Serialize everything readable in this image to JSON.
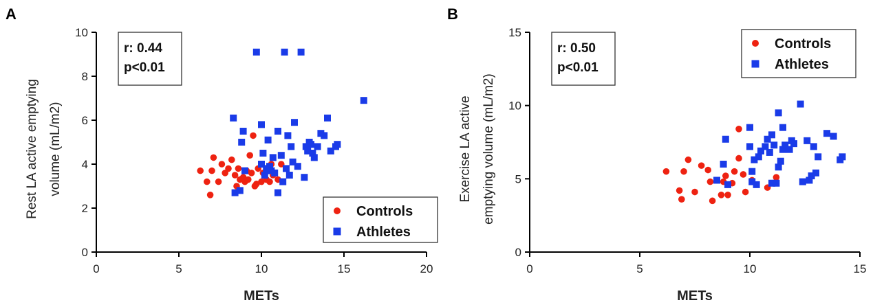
{
  "chart_data": [
    {
      "type": "scatter",
      "panel": "A",
      "ylabel_lines": [
        "Rest LA active emptying",
        "volume (mL/m2)"
      ],
      "xlabel": "METs",
      "xlim": [
        0,
        20
      ],
      "ylim": [
        0,
        10
      ],
      "xticks": [
        "0",
        "5",
        "10",
        "15",
        "20"
      ],
      "yticks": [
        "0",
        "2",
        "4",
        "6",
        "8",
        "10"
      ],
      "stats": [
        "r: 0.44",
        "p<0.01"
      ],
      "legend_position": "bottom-right",
      "series": [
        {
          "name": "Controls",
          "marker": "circle",
          "color": "#ee2211",
          "points": [
            [
              6.3,
              3.7
            ],
            [
              6.7,
              3.2
            ],
            [
              6.9,
              2.6
            ],
            [
              7.0,
              3.7
            ],
            [
              7.1,
              4.3
            ],
            [
              7.4,
              3.2
            ],
            [
              7.6,
              4.0
            ],
            [
              7.8,
              3.6
            ],
            [
              8.0,
              3.8
            ],
            [
              8.2,
              4.2
            ],
            [
              8.4,
              3.5
            ],
            [
              8.5,
              3.0
            ],
            [
              8.6,
              3.8
            ],
            [
              8.7,
              3.3
            ],
            [
              8.9,
              3.4
            ],
            [
              9.0,
              3.2
            ],
            [
              9.1,
              3.7
            ],
            [
              9.2,
              3.3
            ],
            [
              9.3,
              4.4
            ],
            [
              9.4,
              3.6
            ],
            [
              9.5,
              5.3
            ],
            [
              9.6,
              3.0
            ],
            [
              9.7,
              3.1
            ],
            [
              9.8,
              3.8
            ],
            [
              10.0,
              3.2
            ],
            [
              10.1,
              3.6
            ],
            [
              10.3,
              3.3
            ],
            [
              10.5,
              3.2
            ],
            [
              10.6,
              4.0
            ],
            [
              11.0,
              3.3
            ],
            [
              11.2,
              4.0
            ],
            [
              10.7,
              3.5
            ]
          ]
        },
        {
          "name": "Athletes",
          "marker": "square",
          "color": "#1a3be8",
          "points": [
            [
              8.3,
              6.1
            ],
            [
              8.4,
              2.7
            ],
            [
              8.7,
              2.8
            ],
            [
              8.8,
              5.0
            ],
            [
              8.9,
              5.5
            ],
            [
              9.0,
              3.7
            ],
            [
              9.7,
              9.1
            ],
            [
              10.0,
              5.8
            ],
            [
              10.0,
              4.0
            ],
            [
              10.1,
              4.5
            ],
            [
              10.2,
              3.5
            ],
            [
              10.3,
              3.8
            ],
            [
              10.4,
              5.1
            ],
            [
              10.5,
              3.9
            ],
            [
              10.6,
              3.7
            ],
            [
              10.7,
              4.3
            ],
            [
              10.8,
              3.6
            ],
            [
              11.0,
              5.5
            ],
            [
              11.0,
              2.7
            ],
            [
              11.2,
              4.4
            ],
            [
              11.3,
              3.2
            ],
            [
              11.4,
              9.1
            ],
            [
              11.5,
              3.8
            ],
            [
              11.6,
              5.3
            ],
            [
              11.7,
              3.5
            ],
            [
              11.8,
              4.8
            ],
            [
              12.0,
              5.9
            ],
            [
              12.2,
              3.9
            ],
            [
              12.4,
              9.1
            ],
            [
              12.6,
              3.4
            ],
            [
              12.7,
              4.8
            ],
            [
              12.8,
              4.6
            ],
            [
              13.0,
              4.9
            ],
            [
              13.1,
              4.5
            ],
            [
              13.2,
              4.3
            ],
            [
              13.4,
              4.8
            ],
            [
              13.6,
              5.4
            ],
            [
              13.8,
              5.3
            ],
            [
              14.0,
              6.1
            ],
            [
              14.2,
              4.6
            ],
            [
              14.5,
              4.8
            ],
            [
              14.6,
              4.9
            ],
            [
              16.2,
              6.9
            ],
            [
              11.9,
              4.1
            ],
            [
              12.9,
              5.0
            ]
          ]
        }
      ]
    },
    {
      "type": "scatter",
      "panel": "B",
      "ylabel_lines": [
        "Exercise LA active",
        "emptying volume (mL/m2)"
      ],
      "xlabel": "METs",
      "xlim": [
        0,
        15
      ],
      "ylim": [
        0,
        15
      ],
      "xticks": [
        "0",
        "5",
        "10",
        "15"
      ],
      "yticks": [
        "0",
        "5",
        "10",
        "15"
      ],
      "stats": [
        "r: 0.50",
        "p<0.01"
      ],
      "legend_position": "top-right",
      "series": [
        {
          "name": "Controls",
          "marker": "circle",
          "color": "#ee2211",
          "points": [
            [
              6.2,
              5.5
            ],
            [
              6.8,
              4.2
            ],
            [
              6.9,
              3.6
            ],
            [
              7.0,
              5.5
            ],
            [
              7.2,
              6.3
            ],
            [
              7.5,
              4.1
            ],
            [
              7.8,
              5.9
            ],
            [
              8.1,
              5.6
            ],
            [
              8.2,
              4.8
            ],
            [
              8.3,
              3.5
            ],
            [
              8.5,
              4.9
            ],
            [
              8.7,
              3.9
            ],
            [
              8.8,
              4.8
            ],
            [
              8.9,
              5.2
            ],
            [
              9.0,
              3.9
            ],
            [
              9.2,
              4.7
            ],
            [
              9.3,
              5.5
            ],
            [
              9.5,
              6.4
            ],
            [
              9.5,
              8.4
            ],
            [
              9.7,
              5.3
            ],
            [
              9.8,
              4.1
            ],
            [
              10.1,
              4.9
            ],
            [
              10.8,
              4.4
            ],
            [
              11.2,
              5.1
            ]
          ]
        },
        {
          "name": "Athletes",
          "marker": "square",
          "color": "#1a3be8",
          "points": [
            [
              8.5,
              4.9
            ],
            [
              8.8,
              6.0
            ],
            [
              8.9,
              7.7
            ],
            [
              9.0,
              4.6
            ],
            [
              10.0,
              7.2
            ],
            [
              10.0,
              8.5
            ],
            [
              10.1,
              5.5
            ],
            [
              10.1,
              4.8
            ],
            [
              10.2,
              6.3
            ],
            [
              10.3,
              4.6
            ],
            [
              10.4,
              6.5
            ],
            [
              10.5,
              6.9
            ],
            [
              10.7,
              7.2
            ],
            [
              10.8,
              7.7
            ],
            [
              10.9,
              6.8
            ],
            [
              11.0,
              8.0
            ],
            [
              11.0,
              4.7
            ],
            [
              11.1,
              7.3
            ],
            [
              11.2,
              4.7
            ],
            [
              11.3,
              9.5
            ],
            [
              11.3,
              5.8
            ],
            [
              11.4,
              6.2
            ],
            [
              11.5,
              8.5
            ],
            [
              11.5,
              7.0
            ],
            [
              11.6,
              7.3
            ],
            [
              11.8,
              7.0
            ],
            [
              11.9,
              7.6
            ],
            [
              12.0,
              7.4
            ],
            [
              12.3,
              10.1
            ],
            [
              12.4,
              4.8
            ],
            [
              12.6,
              7.6
            ],
            [
              12.7,
              4.9
            ],
            [
              12.8,
              5.2
            ],
            [
              12.9,
              7.2
            ],
            [
              13.0,
              5.4
            ],
            [
              13.1,
              6.5
            ],
            [
              13.5,
              8.1
            ],
            [
              13.8,
              7.9
            ],
            [
              14.1,
              6.3
            ],
            [
              14.2,
              6.5
            ]
          ]
        }
      ]
    }
  ]
}
